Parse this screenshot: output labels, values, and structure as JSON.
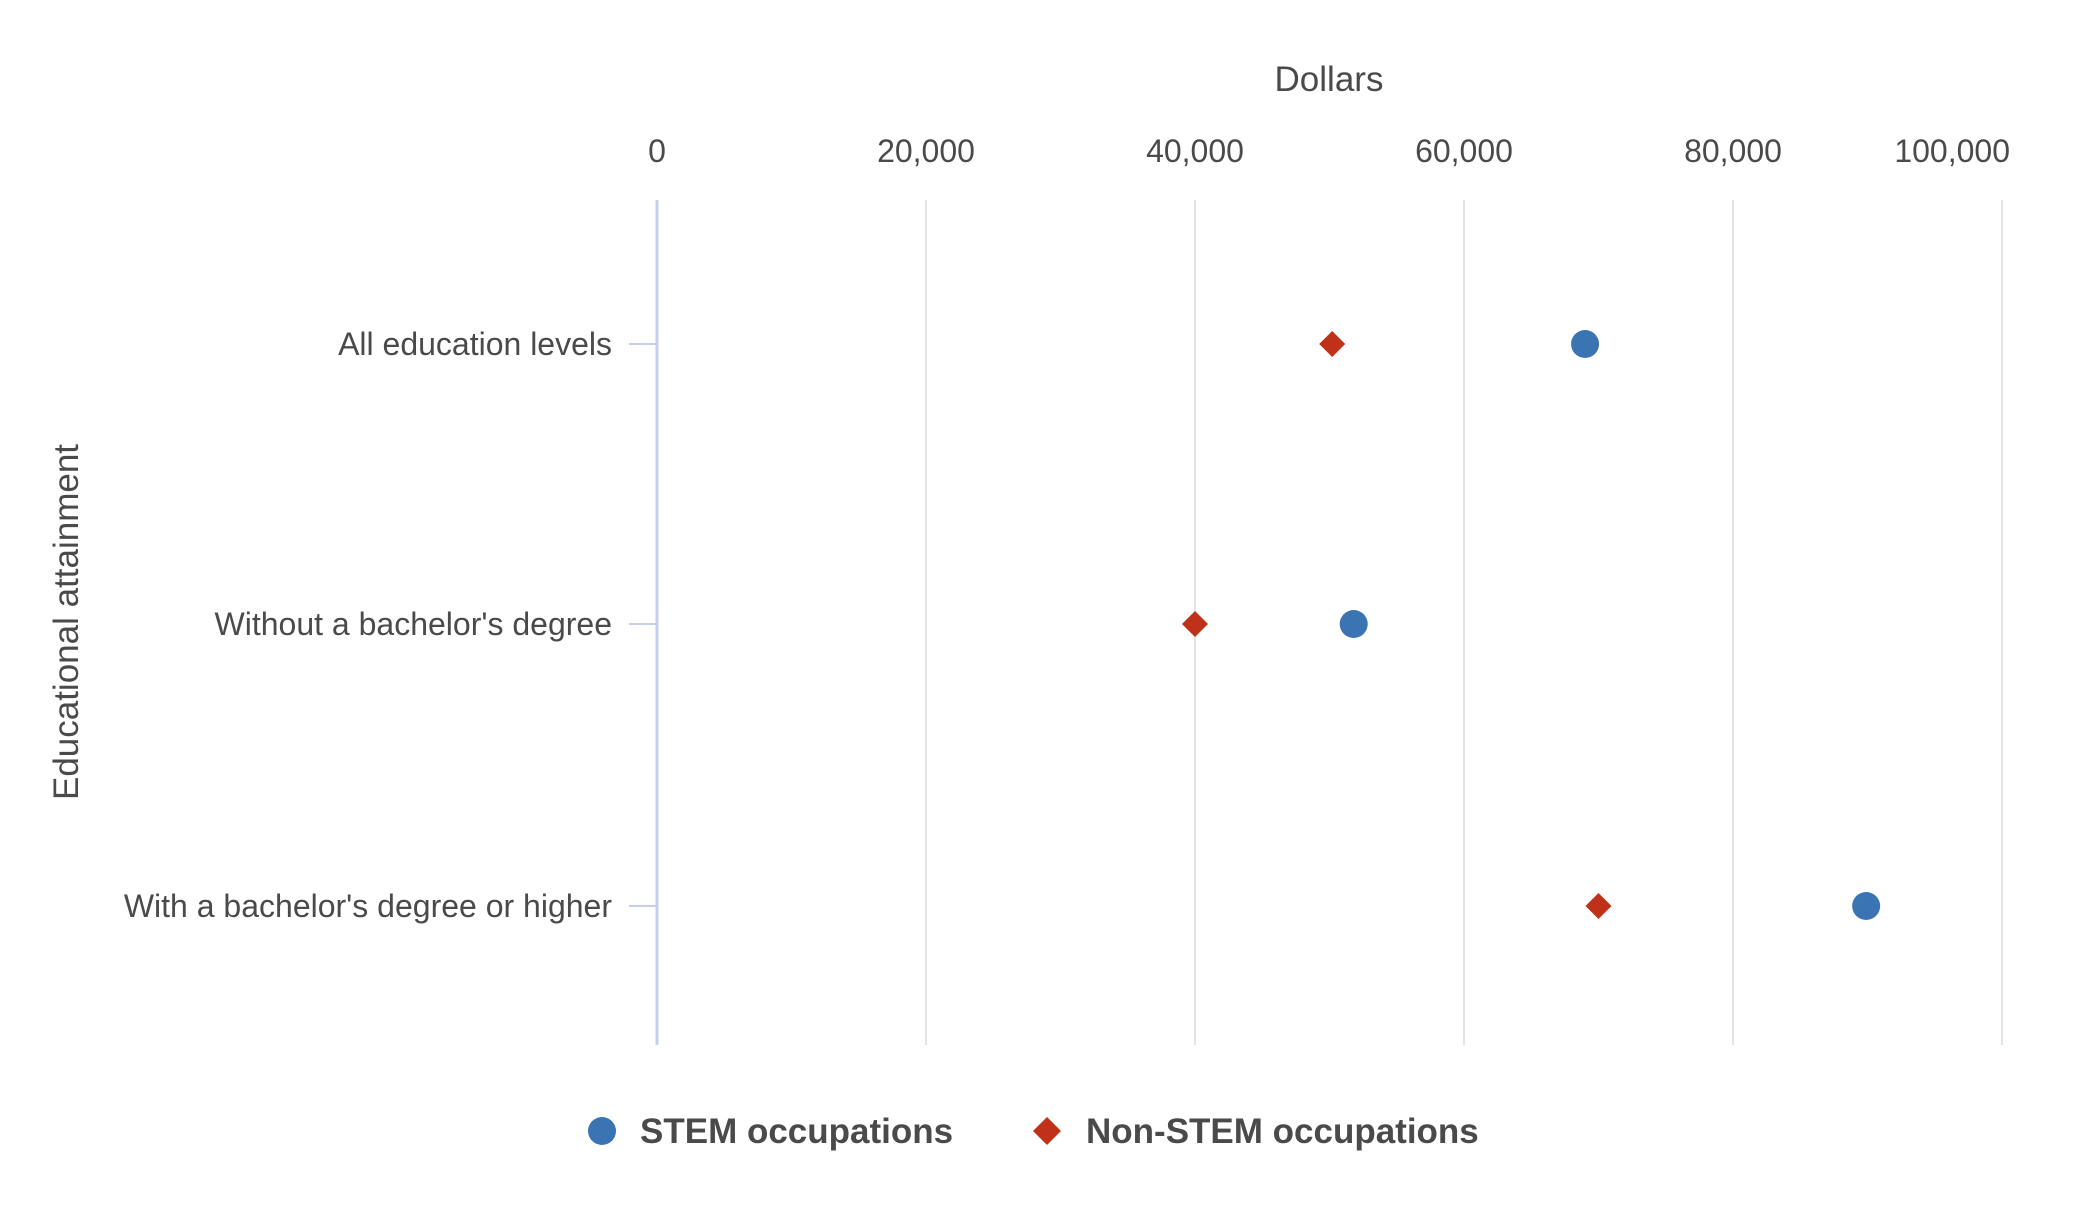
{
  "chart_data": {
    "type": "scatter",
    "title": "",
    "xlabel": "Dollars",
    "ylabel": "Educational attainment",
    "xlim": [
      0,
      100000
    ],
    "xticks": [
      0,
      20000,
      40000,
      60000,
      80000,
      100000
    ],
    "xtick_labels": [
      "0",
      "20,000",
      "40,000",
      "60,000",
      "80,000",
      "100,000"
    ],
    "categories": [
      "All education levels",
      "Without a bachelor's degree",
      "With a bachelor's degree or higher"
    ],
    "series": [
      {
        "name": "STEM occupations",
        "marker": "circle",
        "color": "#3b74b3",
        "values": [
          69000,
          51800,
          89900
        ]
      },
      {
        "name": "Non-STEM occupations",
        "marker": "diamond",
        "color": "#c0311a",
        "values": [
          50200,
          40000,
          70000
        ]
      }
    ],
    "grid": true,
    "legend_position": "bottom-center"
  }
}
